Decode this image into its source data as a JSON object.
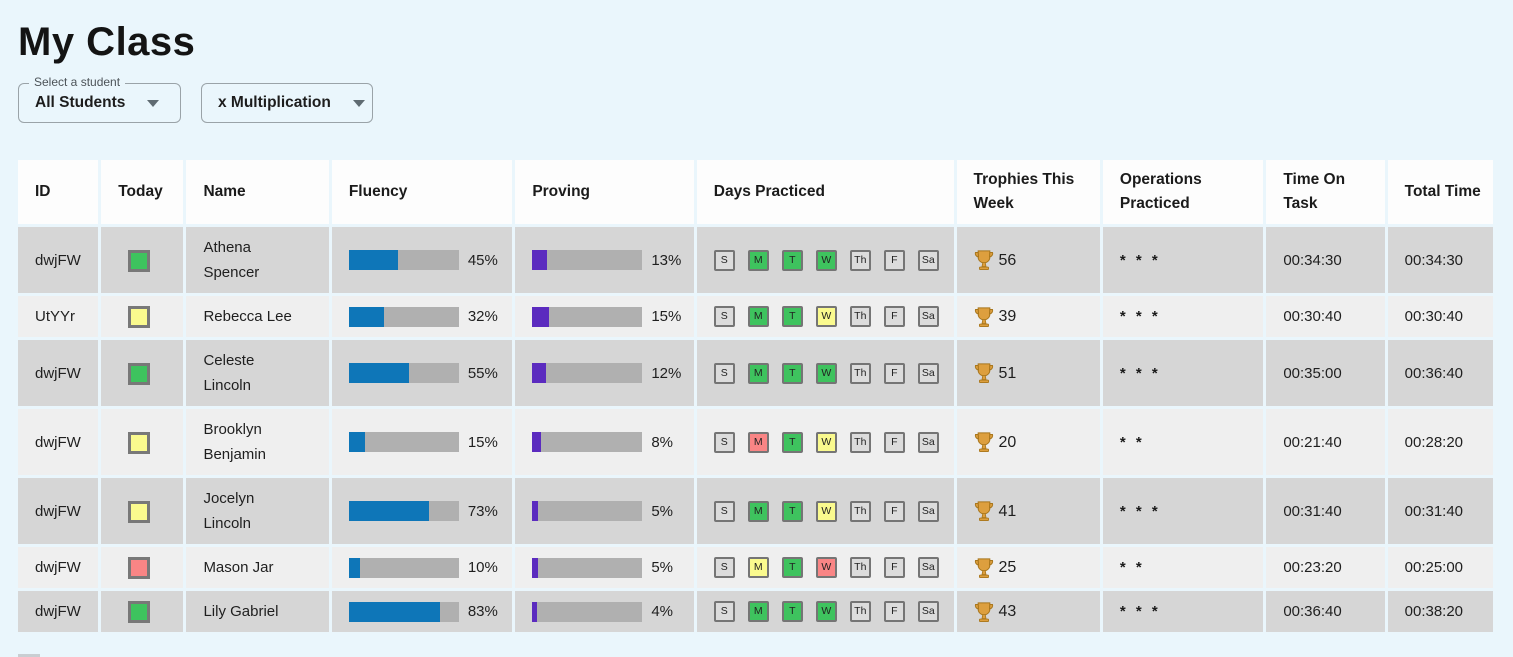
{
  "page": {
    "title": "My Class",
    "background": "#eaf6fc"
  },
  "filters": {
    "student_select": {
      "label": "Select a student",
      "value": "All Students"
    },
    "operation_select": {
      "value": "x Multiplication"
    }
  },
  "table": {
    "columns": [
      "ID",
      "Today",
      "Name",
      "Fluency",
      "Proving",
      "Days Practiced",
      "Trophies This Week",
      "Operations Practiced",
      "Time On Task",
      "Total Time"
    ],
    "day_labels": [
      "S",
      "M",
      "T",
      "W",
      "Th",
      "F",
      "Sa"
    ],
    "rows": [
      {
        "id": "dwjFW",
        "today": "green",
        "name": "Athena Spencer",
        "fluency_pct": 45,
        "fluency_label": "45%",
        "proving_pct": 13,
        "proving_label": "13%",
        "days": [
          "none",
          "green",
          "green",
          "green",
          "none",
          "none",
          "none"
        ],
        "trophies": "56",
        "operations": "* * *",
        "time_on_task": "00:34:30",
        "total_time": "00:34:30"
      },
      {
        "id": "UtYYr",
        "today": "yellow",
        "name": "Rebecca Lee",
        "fluency_pct": 32,
        "fluency_label": "32%",
        "proving_pct": 15,
        "proving_label": "15%",
        "days": [
          "none",
          "green",
          "green",
          "yellow",
          "none",
          "none",
          "none"
        ],
        "trophies": "39",
        "operations": "* * *",
        "time_on_task": "00:30:40",
        "total_time": "00:30:40"
      },
      {
        "id": "dwjFW",
        "today": "green",
        "name": "Celeste Lincoln",
        "fluency_pct": 55,
        "fluency_label": "55%",
        "proving_pct": 12,
        "proving_label": "12%",
        "days": [
          "none",
          "green",
          "green",
          "green",
          "none",
          "none",
          "none"
        ],
        "trophies": "51",
        "operations": "* * *",
        "time_on_task": "00:35:00",
        "total_time": "00:36:40"
      },
      {
        "id": "dwjFW",
        "today": "yellow",
        "name": "Brooklyn Benjamin",
        "fluency_pct": 15,
        "fluency_label": "15%",
        "proving_pct": 8,
        "proving_label": "8%",
        "days": [
          "none",
          "red",
          "green",
          "yellow",
          "none",
          "none",
          "none"
        ],
        "trophies": "20",
        "operations": "* *",
        "time_on_task": "00:21:40",
        "total_time": "00:28:20"
      },
      {
        "id": "dwjFW",
        "today": "yellow",
        "name": "Jocelyn Lincoln",
        "fluency_pct": 73,
        "fluency_label": "73%",
        "proving_pct": 5,
        "proving_label": "5%",
        "days": [
          "none",
          "green",
          "green",
          "yellow",
          "none",
          "none",
          "none"
        ],
        "trophies": "41",
        "operations": "* * *",
        "time_on_task": "00:31:40",
        "total_time": "00:31:40"
      },
      {
        "id": "dwjFW",
        "today": "red",
        "name": "Mason Jar",
        "fluency_pct": 10,
        "fluency_label": "10%",
        "proving_pct": 5,
        "proving_label": "5%",
        "days": [
          "none",
          "yellow",
          "green",
          "red",
          "none",
          "none",
          "none"
        ],
        "trophies": "25",
        "operations": "* *",
        "time_on_task": "00:23:20",
        "total_time": "00:25:00"
      },
      {
        "id": "dwjFW",
        "today": "green",
        "name": "Lily Gabriel",
        "fluency_pct": 83,
        "fluency_label": "83%",
        "proving_pct": 4,
        "proving_label": "4%",
        "days": [
          "none",
          "green",
          "green",
          "green",
          "none",
          "none",
          "none"
        ],
        "trophies": "43",
        "operations": "* * *",
        "time_on_task": "00:36:40",
        "total_time": "00:38:20"
      }
    ],
    "colors": {
      "green": "#3ec35e",
      "yellow": "#fafa8e",
      "red": "#f98585",
      "fluency_bar": "#0e76b8",
      "proving_bar": "#5b2bbf",
      "bar_track": "#b0b0b0",
      "row_dark": "#d6d6d6",
      "row_light": "#efefef",
      "page_bg": "#eaf6fc",
      "trophy": "#dd9f3e"
    }
  }
}
